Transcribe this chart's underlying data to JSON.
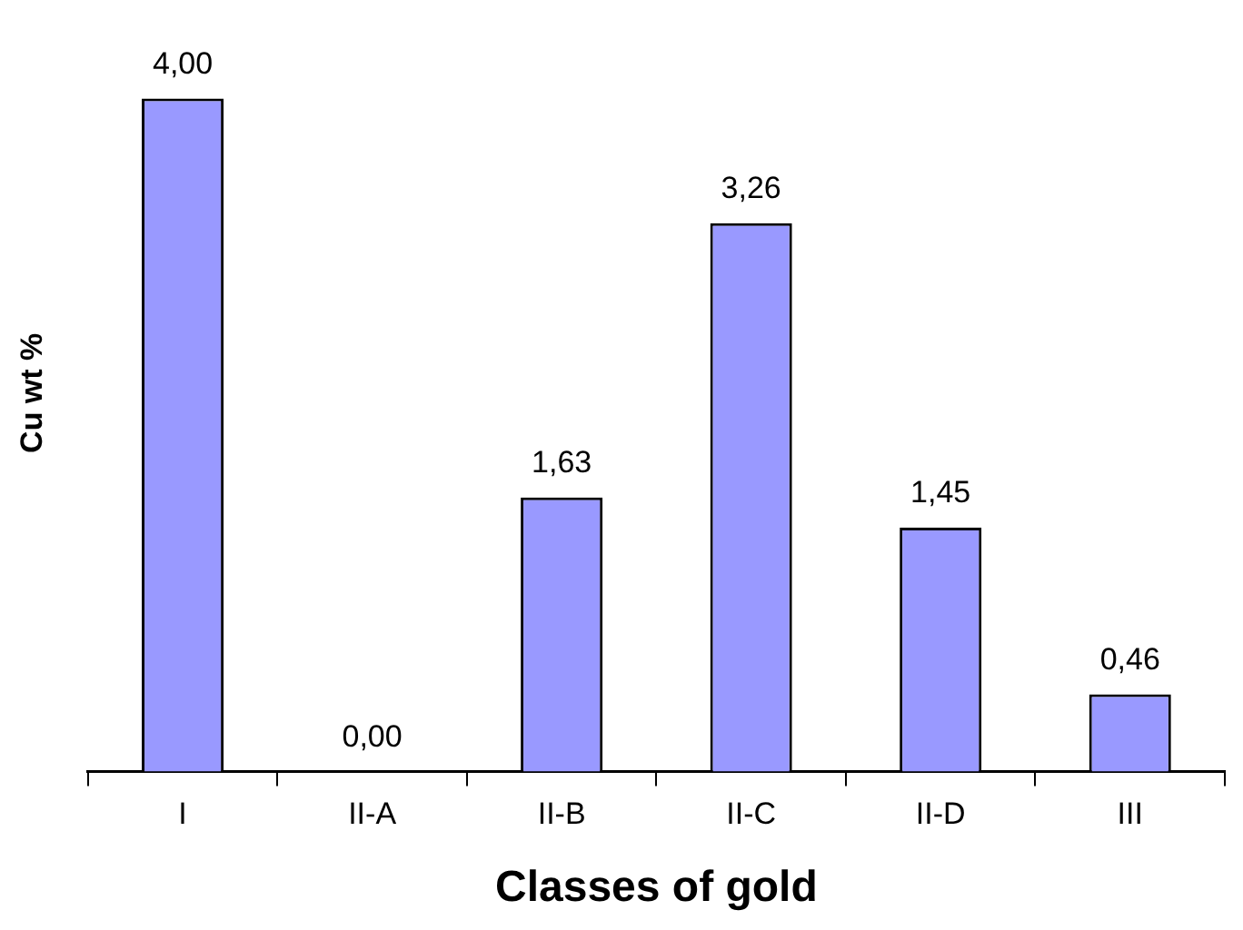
{
  "chart_data": {
    "type": "bar",
    "xlabel": "Classes of gold",
    "ylabel": "Cu wt %",
    "categories": [
      "I",
      "II-A",
      "II-B",
      "II-C",
      "II-D",
      "III"
    ],
    "values": [
      4.0,
      0.0,
      1.63,
      3.26,
      1.45,
      0.46
    ],
    "value_labels": [
      "4,00",
      "0,00",
      "1,63",
      "3,26",
      "1,45",
      "0,46"
    ],
    "color": "#9999ff",
    "grid": false,
    "legend": false
  }
}
